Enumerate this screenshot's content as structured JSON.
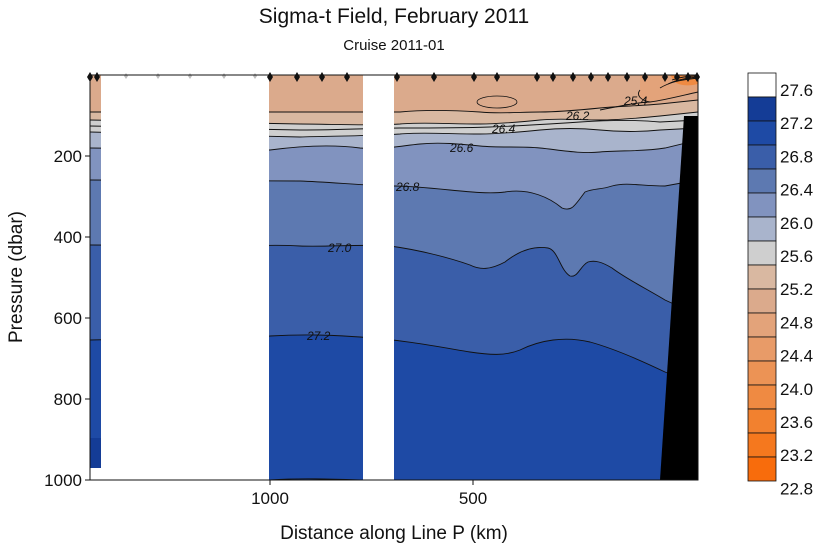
{
  "chart_data": {
    "type": "heatmap",
    "title": "Sigma-t Field,  February 2011",
    "subtitle": "Cruise 2011-01",
    "xlabel": "Distance along Line P  (km)",
    "ylabel": "Pressure  (dbar)",
    "x_reversed": true,
    "xlim": [
      1500,
      0
    ],
    "ylim": [
      1000,
      0
    ],
    "x_ticks": [
      1000,
      500
    ],
    "y_ticks": [
      200,
      400,
      600,
      800,
      1000
    ],
    "colorbar": {
      "levels": [
        27.6,
        27.2,
        26.8,
        26.4,
        26.0,
        25.6,
        25.2,
        24.8,
        24.4,
        24.0,
        23.6,
        23.2,
        22.8
      ],
      "colors": [
        "#ffffff",
        "#143c96",
        "#1e4aa5",
        "#3a5ea9",
        "#5d79b1",
        "#8193bf",
        "#a9b4cc",
        "#cfcfcf",
        "#d9b8a1",
        "#dbaa8c",
        "#e3a37a",
        "#e89b68",
        "#ec9355",
        "#ef8a42",
        "#f2812f",
        "#f5781e",
        "#f86c0c"
      ]
    },
    "contours": [
      {
        "sigma_t": 25.4,
        "label": "25.4"
      },
      {
        "sigma_t": 26.2,
        "label": "26.2"
      },
      {
        "sigma_t": 26.4,
        "label": "26.4"
      },
      {
        "sigma_t": 26.6,
        "label": "26.6"
      },
      {
        "sigma_t": 26.8,
        "label": "26.8"
      },
      {
        "sigma_t": 27.0,
        "label": "27.0"
      },
      {
        "sigma_t": 27.2,
        "label": "27.2"
      }
    ]
  }
}
